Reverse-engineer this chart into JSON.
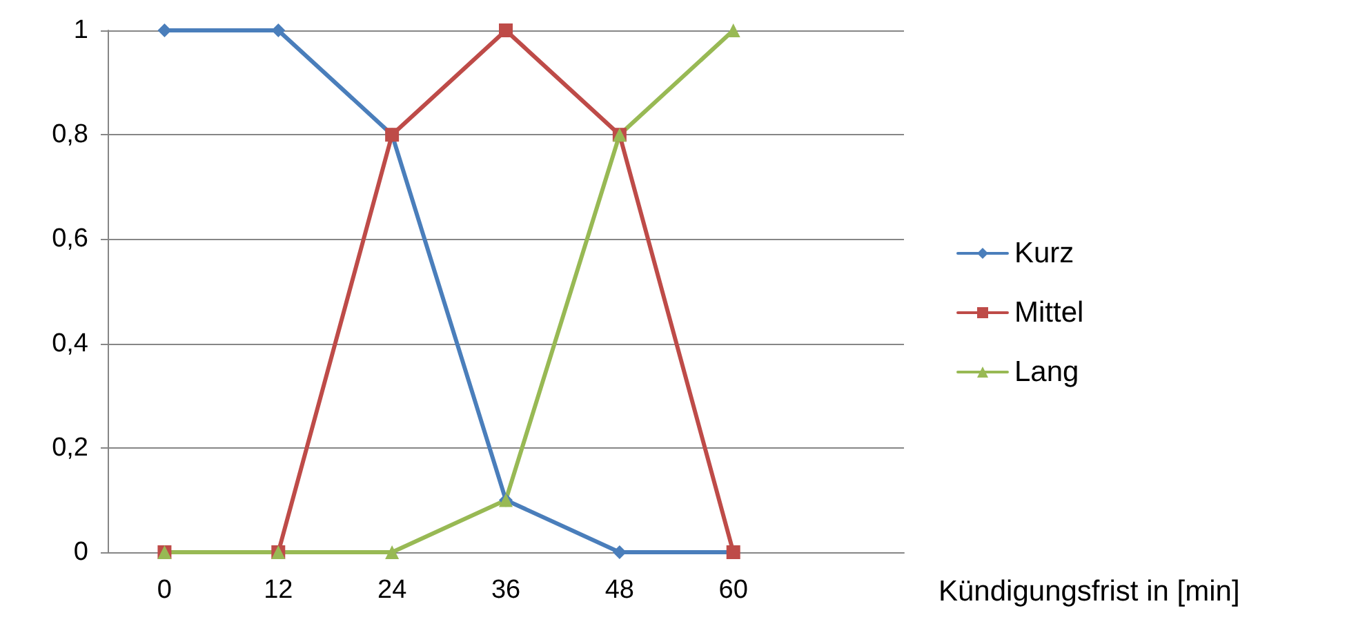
{
  "chart_data": {
    "type": "line",
    "xlabel": "Kündigungsfrist in [min]",
    "categories": [
      "0",
      "12",
      "24",
      "36",
      "48",
      "60",
      null
    ],
    "series": [
      {
        "name": "Kurz",
        "color": "#4a7ebb",
        "marker": "diamond",
        "values": [
          1,
          1,
          0.8,
          0.1,
          0,
          0,
          null
        ]
      },
      {
        "name": "Mittel",
        "color": "#be4b48",
        "marker": "square",
        "values": [
          0,
          0,
          0.8,
          1,
          0.8,
          0,
          null
        ]
      },
      {
        "name": "Lang",
        "color": "#98b954",
        "marker": "triangle",
        "values": [
          0,
          0,
          0,
          0.1,
          0.8,
          1,
          null
        ]
      }
    ],
    "ylim": [
      0,
      1
    ],
    "yticks": [
      0,
      {
        "value": 0.2,
        "label": "0,2"
      },
      {
        "value": 0.4,
        "label": "0,4"
      },
      {
        "value": 0.6,
        "label": "0,6"
      },
      {
        "value": 0.8,
        "label": "0,8"
      },
      1
    ],
    "grid": "y",
    "legend": "right",
    "line_style": "solid"
  }
}
